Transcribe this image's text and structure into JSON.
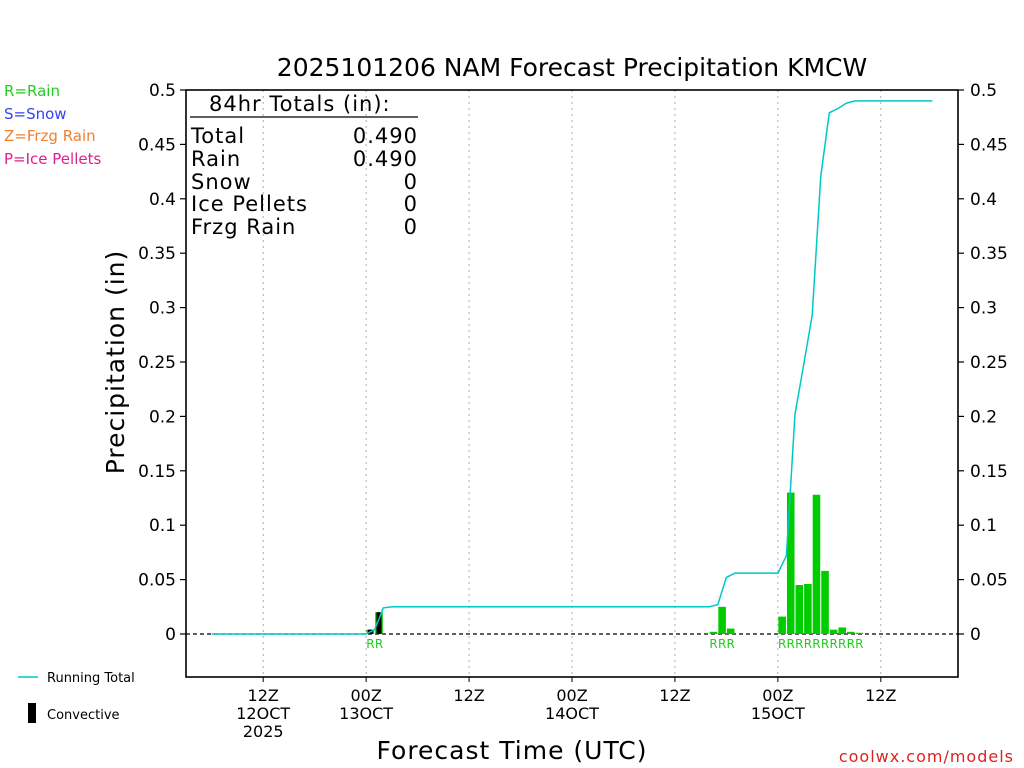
{
  "chart_data": {
    "type": "bar",
    "title": "2025101206 NAM Forecast Precipitation KMCW",
    "ylabel": "Precipitation (in)",
    "xlabel": "Forecast Time (UTC)",
    "ylim": [
      -0.04,
      0.5
    ],
    "xlim_hours": [
      -3,
      87
    ],
    "y_ticks": [
      0,
      0.05,
      0.1,
      0.15,
      0.2,
      0.25,
      0.3,
      0.35,
      0.4,
      0.45,
      0.5
    ],
    "y_tick_labels": [
      "0",
      "0.05",
      "0.1",
      "0.15",
      "0.2",
      "0.25",
      "0.3",
      "0.35",
      "0.4",
      "0.45",
      "0.5"
    ],
    "x_ticks": [
      {
        "hour": 6,
        "line1": "12Z",
        "line2": "12OCT",
        "line3": "2025"
      },
      {
        "hour": 18,
        "line1": "00Z",
        "line2": "13OCT",
        "line3": ""
      },
      {
        "hour": 30,
        "line1": "12Z",
        "line2": "",
        "line3": ""
      },
      {
        "hour": 42,
        "line1": "00Z",
        "line2": "14OCT",
        "line3": ""
      },
      {
        "hour": 54,
        "line1": "12Z",
        "line2": "",
        "line3": ""
      },
      {
        "hour": 66,
        "line1": "00Z",
        "line2": "15OCT",
        "line3": ""
      },
      {
        "hour": 78,
        "line1": "12Z",
        "line2": "",
        "line3": ""
      }
    ],
    "series": [
      {
        "name": "Rain",
        "color": "#00cc00",
        "bars": [
          {
            "hour": 19,
            "value": 0.004
          },
          {
            "hour": 20,
            "value": 0.02
          },
          {
            "hour": 59,
            "value": 0.002
          },
          {
            "hour": 60,
            "value": 0.025
          },
          {
            "hour": 61,
            "value": 0.005
          },
          {
            "hour": 67,
            "value": 0.016
          },
          {
            "hour": 68,
            "value": 0.13
          },
          {
            "hour": 69,
            "value": 0.045
          },
          {
            "hour": 70,
            "value": 0.046
          },
          {
            "hour": 71,
            "value": 0.128
          },
          {
            "hour": 72,
            "value": 0.058
          },
          {
            "hour": 73,
            "value": 0.004
          },
          {
            "hour": 74,
            "value": 0.006
          },
          {
            "hour": 75,
            "value": 0.002
          },
          {
            "hour": 76,
            "value": 0.001
          }
        ]
      },
      {
        "name": "Convective",
        "color": "#000000",
        "bars": [
          {
            "hour": 19,
            "value": 0.004
          },
          {
            "hour": 20,
            "value": 0.02
          }
        ]
      },
      {
        "name": "Running Total",
        "color": "#00c8c8",
        "points": [
          {
            "hour": 0,
            "value": 0
          },
          {
            "hour": 18,
            "value": 0
          },
          {
            "hour": 19,
            "value": 0.004
          },
          {
            "hour": 20,
            "value": 0.024
          },
          {
            "hour": 21,
            "value": 0.025
          },
          {
            "hour": 58,
            "value": 0.025
          },
          {
            "hour": 59,
            "value": 0.027
          },
          {
            "hour": 60,
            "value": 0.052
          },
          {
            "hour": 61,
            "value": 0.056
          },
          {
            "hour": 66,
            "value": 0.056
          },
          {
            "hour": 67,
            "value": 0.072
          },
          {
            "hour": 68,
            "value": 0.202
          },
          {
            "hour": 69,
            "value": 0.247
          },
          {
            "hour": 70,
            "value": 0.293
          },
          {
            "hour": 71,
            "value": 0.421
          },
          {
            "hour": 72,
            "value": 0.479
          },
          {
            "hour": 73,
            "value": 0.483
          },
          {
            "hour": 74,
            "value": 0.488
          },
          {
            "hour": 75,
            "value": 0.49
          },
          {
            "hour": 76,
            "value": 0.49
          },
          {
            "hour": 84,
            "value": 0.49
          }
        ]
      }
    ],
    "ptype_markers": [
      {
        "hour": 19,
        "label": "R"
      },
      {
        "hour": 20,
        "label": "R"
      },
      {
        "hour": 59,
        "label": "R"
      },
      {
        "hour": 60,
        "label": "R"
      },
      {
        "hour": 61,
        "label": "R"
      },
      {
        "hour": 67,
        "label": "R"
      },
      {
        "hour": 68,
        "label": "R"
      },
      {
        "hour": 69,
        "label": "R"
      },
      {
        "hour": 70,
        "label": "R"
      },
      {
        "hour": 71,
        "label": "R"
      },
      {
        "hour": 72,
        "label": "R"
      },
      {
        "hour": 73,
        "label": "R"
      },
      {
        "hour": 74,
        "label": "R"
      },
      {
        "hour": 75,
        "label": "R"
      },
      {
        "hour": 76,
        "label": "R"
      }
    ],
    "totals_box": {
      "heading": "84hr Totals (in):",
      "rows": [
        {
          "label": "Total",
          "value": "0.490"
        },
        {
          "label": "Rain",
          "value": "0.490"
        },
        {
          "label": "Snow",
          "value": "0"
        },
        {
          "label": "Ice Pellets",
          "value": "0"
        },
        {
          "label": "Frzg Rain",
          "value": "0"
        }
      ]
    },
    "legend_ptypes": [
      {
        "text": "R=Rain",
        "color": "#22cc22"
      },
      {
        "text": "S=Snow",
        "color": "#3344ee"
      },
      {
        "text": "Z=Frzg Rain",
        "color": "#f08030"
      },
      {
        "text": "P=Ice Pellets",
        "color": "#e0208c"
      }
    ],
    "legend_series": {
      "running_total": "Running Total",
      "convective": "Convective"
    },
    "marker_color": "#22cc22",
    "axis_color": "#000000",
    "grid_color": "#aaaaaa"
  },
  "credit": "coolwx.com/models",
  "credit_color": "#dd2222"
}
